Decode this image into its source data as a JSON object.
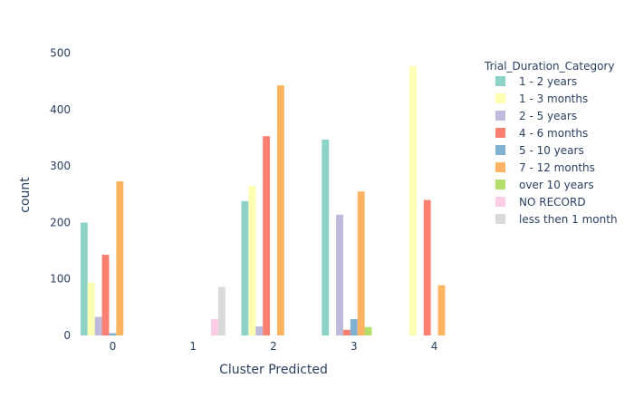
{
  "chart_data": {
    "type": "bar",
    "categories": [
      "0",
      "1",
      "2",
      "3",
      "4"
    ],
    "xlabel": "Cluster Predicted",
    "ylabel": "count",
    "ylim": [
      0,
      530
    ],
    "yticks": [
      0,
      100,
      200,
      300,
      400,
      500
    ],
    "grid": false,
    "legend": {
      "title": "Trial_Duration_Category",
      "placement": "right"
    },
    "series": [
      {
        "name": "1 - 2 years",
        "color": "#8DD3C7",
        "values": [
          200,
          0,
          238,
          347,
          0
        ]
      },
      {
        "name": "1 - 3 months",
        "color": "#FFFFB3",
        "values": [
          94,
          0,
          265,
          0,
          477
        ]
      },
      {
        "name": "2 - 5 years",
        "color": "#BEBADA",
        "values": [
          33,
          0,
          16,
          214,
          0
        ]
      },
      {
        "name": "4 - 6 months",
        "color": "#FB8072",
        "values": [
          143,
          0,
          353,
          10,
          240
        ]
      },
      {
        "name": "5 - 10 years",
        "color": "#80B1D3",
        "values": [
          4,
          0,
          0,
          29,
          0
        ]
      },
      {
        "name": "7 - 12 months",
        "color": "#FDB462",
        "values": [
          273,
          0,
          443,
          255,
          89
        ]
      },
      {
        "name": "over 10 years",
        "color": "#B3DE69",
        "values": [
          0,
          0,
          0,
          15,
          0
        ]
      },
      {
        "name": "NO RECORD",
        "color": "#FCCDE5",
        "values": [
          0,
          29,
          0,
          0,
          0
        ]
      },
      {
        "name": "less then 1 month",
        "color": "#D9D9D9",
        "values": [
          0,
          86,
          0,
          0,
          0
        ]
      }
    ]
  }
}
